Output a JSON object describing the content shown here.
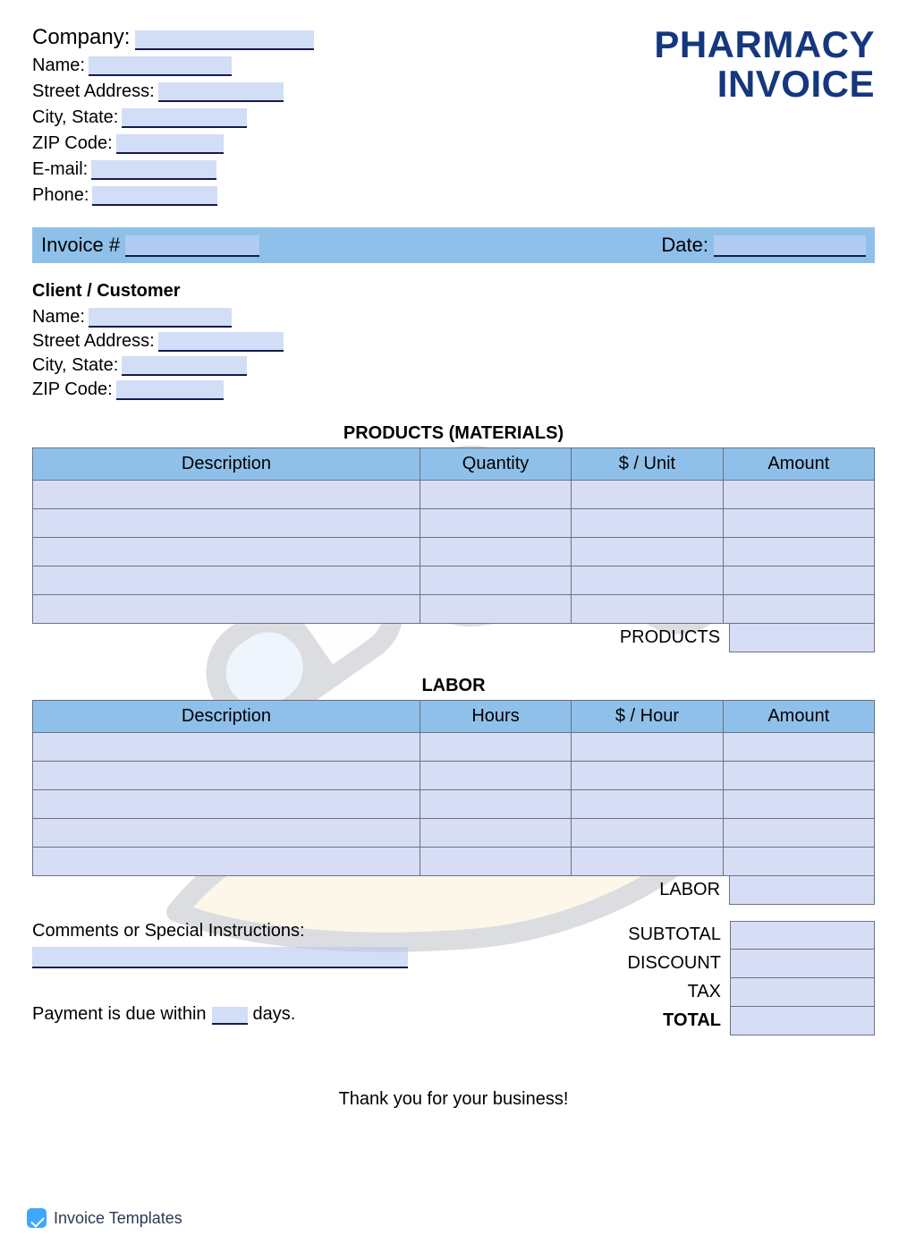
{
  "colors": {
    "title": "#14377d",
    "bar": "#8fc0ea",
    "cell": "#d7ddf4",
    "input_fill": "#c9d7f2"
  },
  "title_line1": "PHARMACY",
  "title_line2": "INVOICE",
  "company": {
    "company_label": "Company:",
    "name_label": "Name:",
    "street_label": "Street Address:",
    "city_label": "City, State:",
    "zip_label": "ZIP Code:",
    "email_label": "E-mail:",
    "phone_label": "Phone:"
  },
  "invoice_bar": {
    "invoice_label": "Invoice #",
    "date_label": "Date:"
  },
  "client": {
    "heading": "Client / Customer",
    "name_label": "Name:",
    "street_label": "Street Address:",
    "city_label": "City, State:",
    "zip_label": "ZIP Code:"
  },
  "products_table": {
    "title": "PRODUCTS (MATERIALS)",
    "columns": [
      "Description",
      "Quantity",
      "$ / Unit",
      "Amount"
    ],
    "row_count": 5,
    "subtotal_label": "PRODUCTS"
  },
  "labor_table": {
    "title": "LABOR",
    "columns": [
      "Description",
      "Hours",
      "$ / Hour",
      "Amount"
    ],
    "row_count": 5,
    "subtotal_label": "LABOR"
  },
  "comments_label": "Comments or Special Instructions:",
  "payment_prefix": "Payment is due within",
  "payment_suffix": "days.",
  "totals": {
    "subtotal": "SUBTOTAL",
    "discount": "DISCOUNT",
    "tax": "TAX",
    "total": "TOTAL"
  },
  "thanks": "Thank you for your business!",
  "footer_text": "Invoice Templates"
}
